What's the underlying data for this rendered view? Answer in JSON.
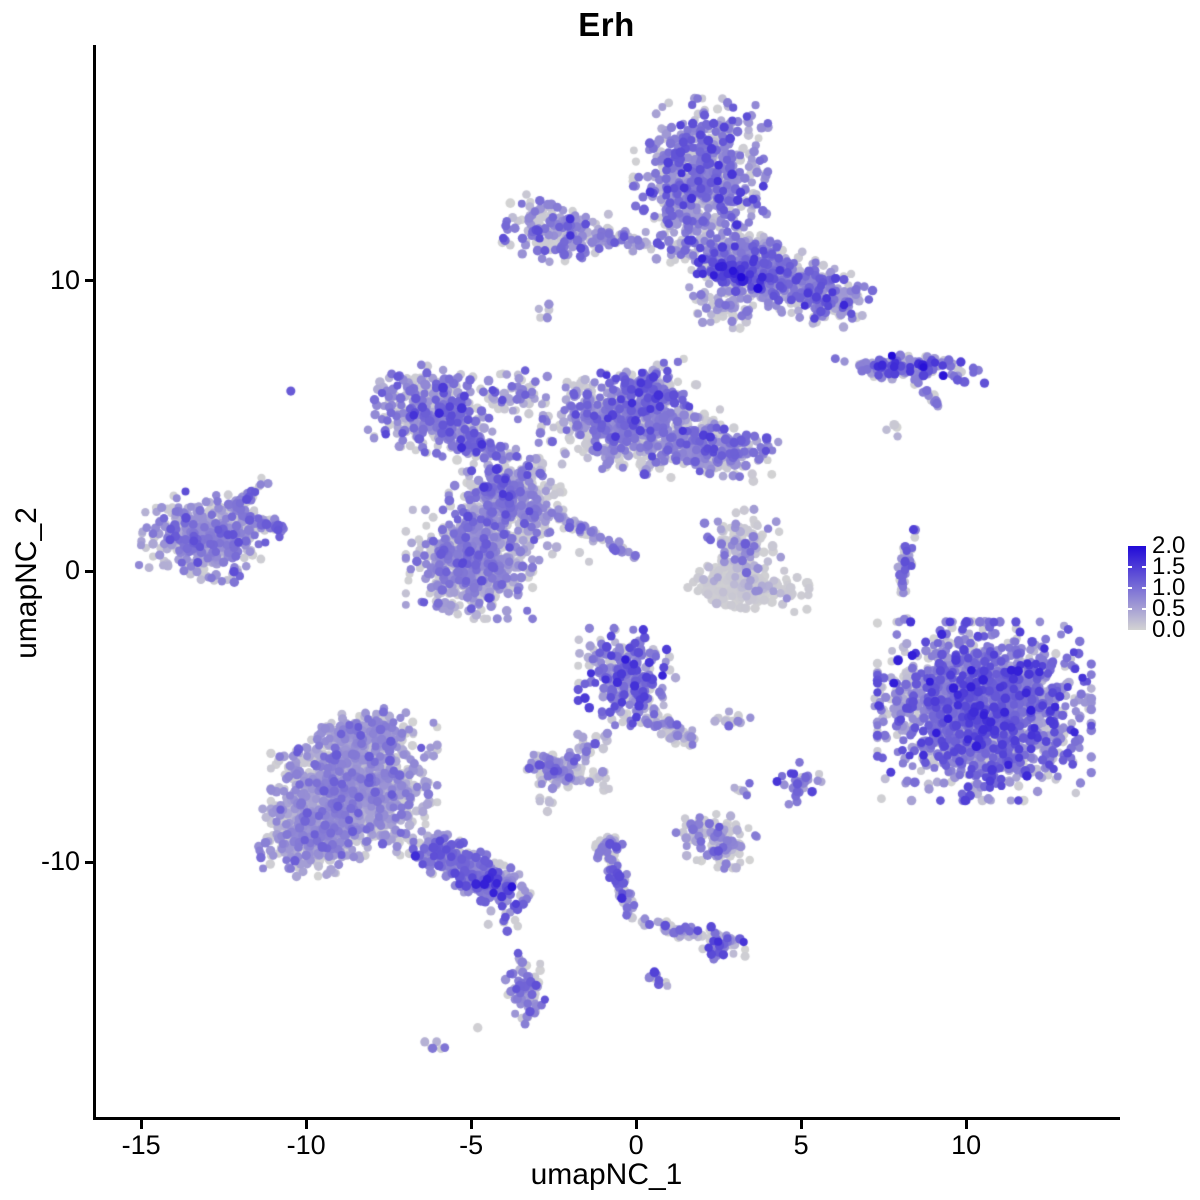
{
  "title": "Erh",
  "axes": {
    "x": {
      "label": "umapNC_1",
      "ticks": [
        "-15",
        "-10",
        "-5",
        "0",
        "5",
        "10"
      ],
      "tick_values": [
        -15,
        -10,
        -5,
        0,
        5,
        10
      ]
    },
    "y": {
      "label": "umapNC_2",
      "ticks": [
        "10",
        "0",
        "-10"
      ],
      "tick_values": [
        10,
        0,
        -10
      ]
    }
  },
  "legend": {
    "labels": [
      "2.0",
      "1.5",
      "1.0",
      "0.5",
      "0.0"
    ],
    "values": [
      2.0,
      1.5,
      1.0,
      0.5,
      0.0
    ],
    "color_low": "#d3d3d3",
    "color_high": "#210ad8",
    "notch_values": [
      1.5,
      1.0,
      0.5
    ]
  },
  "chart_data": {
    "type": "scatter",
    "title": "Erh",
    "xlabel": "umapNC_1",
    "ylabel": "umapNC_2",
    "xlim": [
      -16.4,
      14.6
    ],
    "ylim": [
      -18.8,
      18.1
    ],
    "grid": false,
    "legend_position": "right",
    "colorbar": {
      "min": 0.0,
      "max": 2.0,
      "tick_values": [
        2.0,
        1.5,
        1.0,
        0.5,
        0.0
      ],
      "low": "#d3d3d3",
      "high": "#210ad8"
    },
    "point_radius_px": 4.4,
    "clusters": [
      {
        "name": "top-core",
        "x": 1.95,
        "y": 13.5,
        "sx": 0.85,
        "sy": 1.15,
        "rot": 0,
        "n": 700,
        "expr_mean": 0.75,
        "expr_sd": 0.35,
        "grey_frac": 0.22
      },
      {
        "name": "top-arm",
        "x": 3.7,
        "y": 10.4,
        "sx": 1.05,
        "sy": 0.45,
        "rot": -24,
        "n": 550,
        "expr_mean": 0.7,
        "expr_sd": 0.35,
        "grey_frac": 0.28
      },
      {
        "name": "top-arm-tip",
        "x": 5.7,
        "y": 9.5,
        "sx": 0.55,
        "sy": 0.4,
        "rot": -20,
        "n": 180,
        "expr_mean": 0.75,
        "expr_sd": 0.4,
        "grey_frac": 0.25
      },
      {
        "name": "top-dark-fold",
        "x": 2.9,
        "y": 10.3,
        "sx": 0.45,
        "sy": 0.18,
        "rot": -20,
        "n": 90,
        "expr_mean": 1.25,
        "expr_sd": 0.35,
        "grey_frac": 0.05
      },
      {
        "name": "top-under-sparse",
        "x": 2.8,
        "y": 9.2,
        "sx": 0.5,
        "sy": 0.35,
        "rot": 0,
        "n": 80,
        "expr_mean": 0.6,
        "expr_sd": 0.3,
        "grey_frac": 0.4
      },
      {
        "name": "top-left-knot",
        "x": -2.4,
        "y": 11.7,
        "sx": 0.65,
        "sy": 0.45,
        "rot": -10,
        "n": 170,
        "expr_mean": 0.75,
        "expr_sd": 0.35,
        "grey_frac": 0.3
      },
      {
        "name": "top-left-bridge",
        "x": -0.45,
        "y": 11.4,
        "sx": 0.6,
        "sy": 0.15,
        "rot": -5,
        "n": 60,
        "expr_mean": 0.7,
        "expr_sd": 0.3,
        "grey_frac": 0.3
      },
      {
        "name": "tiny-below-knot",
        "x": -2.76,
        "y": 8.8,
        "sx": 0.16,
        "sy": 0.16,
        "rot": 0,
        "n": 7,
        "expr_mean": 0.5,
        "expr_sd": 0.3,
        "grey_frac": 0.4
      },
      {
        "name": "right-streak",
        "x": 8.3,
        "y": 7.0,
        "sx": 0.95,
        "sy": 0.17,
        "rot": -3,
        "n": 140,
        "expr_mean": 0.95,
        "expr_sd": 0.45,
        "grey_frac": 0.12
      },
      {
        "name": "right-streak-diag",
        "x": 8.9,
        "y": 6.0,
        "sx": 0.28,
        "sy": 0.08,
        "rot": -48,
        "n": 12,
        "expr_mean": 0.8,
        "expr_sd": 0.3,
        "grey_frac": 0.2
      },
      {
        "name": "right-streak-dots",
        "x": 7.76,
        "y": 4.8,
        "sx": 0.13,
        "sy": 0.13,
        "rot": 0,
        "n": 4,
        "expr_mean": 0.3,
        "expr_sd": 0.3,
        "grey_frac": 0.5
      },
      {
        "name": "mid-left-lobe",
        "x": -6.1,
        "y": 5.5,
        "sx": 0.78,
        "sy": 0.6,
        "rot": -15,
        "n": 430,
        "expr_mean": 0.75,
        "expr_sd": 0.35,
        "grey_frac": 0.28
      },
      {
        "name": "mid-ridge",
        "x": -4.8,
        "y": 4.4,
        "sx": 0.7,
        "sy": 0.2,
        "rot": -28,
        "n": 120,
        "expr_mean": 0.85,
        "expr_sd": 0.35,
        "grey_frac": 0.15
      },
      {
        "name": "mid-hub",
        "x": -4.0,
        "y": 2.6,
        "sx": 0.7,
        "sy": 0.55,
        "rot": 0,
        "n": 320,
        "expr_mean": 0.7,
        "expr_sd": 0.35,
        "grey_frac": 0.33
      },
      {
        "name": "mid-lower-blob",
        "x": -5.06,
        "y": 0.24,
        "sx": 0.8,
        "sy": 0.78,
        "rot": 0,
        "n": 620,
        "expr_mean": 0.65,
        "expr_sd": 0.3,
        "grey_frac": 0.35
      },
      {
        "name": "mid-right-wing",
        "x": -0.2,
        "y": 5.05,
        "sx": 1.1,
        "sy": 0.68,
        "rot": -8,
        "n": 650,
        "expr_mean": 0.7,
        "expr_sd": 0.35,
        "grey_frac": 0.33
      },
      {
        "name": "mid-wing-peak",
        "x": 0.24,
        "y": 6.25,
        "sx": 0.5,
        "sy": 0.45,
        "rot": 0,
        "n": 150,
        "expr_mean": 0.8,
        "expr_sd": 0.35,
        "grey_frac": 0.25
      },
      {
        "name": "mid-far-wing",
        "x": 2.2,
        "y": 4.26,
        "sx": 0.85,
        "sy": 0.4,
        "rot": -10,
        "n": 280,
        "expr_mean": 0.7,
        "expr_sd": 0.35,
        "grey_frac": 0.33
      },
      {
        "name": "mid-diag-streak",
        "x": -1.7,
        "y": 1.48,
        "sx": 0.8,
        "sy": 0.1,
        "rot": -29,
        "n": 70,
        "expr_mean": 0.75,
        "expr_sd": 0.3,
        "grey_frac": 0.3
      },
      {
        "name": "mid-scatter-fill",
        "x": -3.5,
        "y": 1.8,
        "sx": 0.9,
        "sy": 0.7,
        "rot": 0,
        "n": 130,
        "expr_mean": 0.5,
        "expr_sd": 0.3,
        "grey_frac": 0.45
      },
      {
        "name": "mid-neck-up",
        "x": -3.5,
        "y": 6.1,
        "sx": 0.4,
        "sy": 0.5,
        "rot": 0,
        "n": 45,
        "expr_mean": 0.6,
        "expr_sd": 0.3,
        "grey_frac": 0.4
      },
      {
        "name": "left-cluster",
        "x": -13.1,
        "y": 1.2,
        "sx": 0.78,
        "sy": 0.62,
        "rot": -5,
        "n": 520,
        "expr_mean": 0.6,
        "expr_sd": 0.3,
        "grey_frac": 0.3
      },
      {
        "name": "left-spur-up",
        "x": -11.9,
        "y": 2.47,
        "sx": 0.38,
        "sy": 0.12,
        "rot": 45,
        "n": 45,
        "expr_mean": 0.7,
        "expr_sd": 0.3,
        "grey_frac": 0.3
      },
      {
        "name": "left-spur-right",
        "x": -11.06,
        "y": 1.58,
        "sx": 0.42,
        "sy": 0.12,
        "rot": -22,
        "n": 40,
        "expr_mean": 0.7,
        "expr_sd": 0.3,
        "grey_frac": 0.3
      },
      {
        "name": "lone-dot",
        "x": -10.5,
        "y": 6.2,
        "sx": 0.03,
        "sy": 0.03,
        "rot": 0,
        "n": 1,
        "expr_mean": 1.2,
        "expr_sd": 0,
        "grey_frac": 0
      },
      {
        "name": "center-cluster",
        "x": -0.27,
        "y": -3.64,
        "sx": 0.62,
        "sy": 0.7,
        "rot": 0,
        "n": 310,
        "expr_mean": 0.85,
        "expr_sd": 0.4,
        "grey_frac": 0.22
      },
      {
        "name": "center-arm",
        "x": 1.06,
        "y": -5.43,
        "sx": 0.5,
        "sy": 0.16,
        "rot": -35,
        "n": 60,
        "expr_mean": 0.6,
        "expr_sd": 0.3,
        "grey_frac": 0.35
      },
      {
        "name": "center-trail",
        "x": -1.42,
        "y": -6.12,
        "sx": 0.3,
        "sy": 0.3,
        "rot": 0,
        "n": 18,
        "expr_mean": 0.5,
        "expr_sd": 0.3,
        "grey_frac": 0.45
      },
      {
        "name": "center-small-blob",
        "x": -2.4,
        "y": -6.87,
        "sx": 0.45,
        "sy": 0.3,
        "rot": -10,
        "n": 110,
        "expr_mean": 0.6,
        "expr_sd": 0.3,
        "grey_frac": 0.38
      },
      {
        "name": "center-tiny-below",
        "x": -2.7,
        "y": -7.9,
        "sx": 0.2,
        "sy": 0.15,
        "rot": 0,
        "n": 6,
        "expr_mean": 0.3,
        "expr_sd": 0.2,
        "grey_frac": 0.6
      },
      {
        "name": "center-dot-pair",
        "x": -1.06,
        "y": -7.15,
        "sx": 0.22,
        "sy": 0.18,
        "rot": 0,
        "n": 10,
        "expr_mean": 0.5,
        "expr_sd": 0.3,
        "grey_frac": 0.5
      },
      {
        "name": "dots-mid-right",
        "x": 2.8,
        "y": -5.08,
        "sx": 0.32,
        "sy": 0.14,
        "rot": 0,
        "n": 14,
        "expr_mean": 0.5,
        "expr_sd": 0.3,
        "grey_frac": 0.5
      },
      {
        "name": "small-purple-blob",
        "x": 4.94,
        "y": -7.29,
        "sx": 0.28,
        "sy": 0.3,
        "rot": 0,
        "n": 32,
        "expr_mean": 0.9,
        "expr_sd": 0.35,
        "grey_frac": 0.18
      },
      {
        "name": "tiny-blob",
        "x": 3.36,
        "y": -7.6,
        "sx": 0.16,
        "sy": 0.13,
        "rot": 0,
        "n": 8,
        "expr_mean": 0.7,
        "expr_sd": 0.3,
        "grey_frac": 0.35
      },
      {
        "name": "bottomleft-main",
        "x": -8.55,
        "y": -7.49,
        "sx": 1.05,
        "sy": 0.95,
        "rot": 0,
        "n": 1200,
        "expr_mean": 0.55,
        "expr_sd": 0.27,
        "grey_frac": 0.38
      },
      {
        "name": "bottomleft-top",
        "x": -8.15,
        "y": -5.6,
        "sx": 0.58,
        "sy": 0.4,
        "rot": 0,
        "n": 220,
        "expr_mean": 0.55,
        "expr_sd": 0.27,
        "grey_frac": 0.38
      },
      {
        "name": "bottomleft-left",
        "x": -9.76,
        "y": -9.04,
        "sx": 0.72,
        "sy": 0.6,
        "rot": 10,
        "n": 420,
        "expr_mean": 0.55,
        "expr_sd": 0.25,
        "grey_frac": 0.4
      },
      {
        "name": "bottomleft-tail",
        "x": -5.3,
        "y": -10.14,
        "sx": 0.95,
        "sy": 0.3,
        "rot": -31,
        "n": 300,
        "expr_mean": 0.8,
        "expr_sd": 0.4,
        "grey_frac": 0.2
      },
      {
        "name": "tail-tip",
        "x": -4.3,
        "y": -10.76,
        "sx": 0.38,
        "sy": 0.3,
        "rot": -31,
        "n": 90,
        "expr_mean": 0.95,
        "expr_sd": 0.4,
        "grey_frac": 0.15
      },
      {
        "name": "below-tail-sparse",
        "x": -4.0,
        "y": -11.8,
        "sx": 0.28,
        "sy": 0.5,
        "rot": 0,
        "n": 14,
        "expr_mean": 0.6,
        "expr_sd": 0.35,
        "grey_frac": 0.4
      },
      {
        "name": "y-trail-main",
        "x": -0.52,
        "y": -10.62,
        "sx": 0.6,
        "sy": 0.12,
        "rot": -70,
        "n": 60,
        "expr_mean": 0.8,
        "expr_sd": 0.35,
        "grey_frac": 0.3
      },
      {
        "name": "y-trail-knob",
        "x": -0.91,
        "y": -9.42,
        "sx": 0.22,
        "sy": 0.18,
        "rot": 0,
        "n": 25,
        "expr_mean": 0.8,
        "expr_sd": 0.35,
        "grey_frac": 0.3
      },
      {
        "name": "y-trail-branch",
        "x": 1.09,
        "y": -12.27,
        "sx": 0.68,
        "sy": 0.1,
        "rot": -17,
        "n": 45,
        "expr_mean": 0.7,
        "expr_sd": 0.35,
        "grey_frac": 0.35
      },
      {
        "name": "branch-end-blob",
        "x": 2.58,
        "y": -12.85,
        "sx": 0.3,
        "sy": 0.26,
        "rot": 0,
        "n": 50,
        "expr_mean": 0.9,
        "expr_sd": 0.4,
        "grey_frac": 0.25
      },
      {
        "name": "grey-mix-cluster",
        "x": 2.39,
        "y": -9.21,
        "sx": 0.5,
        "sy": 0.38,
        "rot": -15,
        "n": 130,
        "expr_mean": 0.6,
        "expr_sd": 0.3,
        "grey_frac": 0.45
      },
      {
        "name": "bottom-dot-blob",
        "x": 0.55,
        "y": -14.02,
        "sx": 0.2,
        "sy": 0.09,
        "rot": -40,
        "n": 10,
        "expr_mean": 1.0,
        "expr_sd": 0.3,
        "grey_frac": 0.1
      },
      {
        "name": "bottom-blob",
        "x": -3.33,
        "y": -14.43,
        "sx": 0.24,
        "sy": 0.55,
        "rot": 10,
        "n": 70,
        "expr_mean": 0.75,
        "expr_sd": 0.35,
        "grey_frac": 0.28
      },
      {
        "name": "bottom-grey-dot",
        "x": -4.76,
        "y": -15.77,
        "sx": 0.03,
        "sy": 0.03,
        "rot": 0,
        "n": 1,
        "expr_mean": 0.05,
        "expr_sd": 0,
        "grey_frac": 1
      },
      {
        "name": "bottom-tiny-diag",
        "x": -6.03,
        "y": -16.36,
        "sx": 0.22,
        "sy": 0.08,
        "rot": -30,
        "n": 7,
        "expr_mean": 0.7,
        "expr_sd": 0.3,
        "grey_frac": 0.2
      },
      {
        "name": "right-round",
        "x": 10.55,
        "y": -4.81,
        "sx": 1.35,
        "sy": 1.28,
        "rot": 0,
        "n": 1700,
        "expr_mean": 0.85,
        "expr_sd": 0.4,
        "grey_frac": 0.15
      },
      {
        "name": "right-round-fringe",
        "x": 8.42,
        "y": -4.05,
        "sx": 0.5,
        "sy": 0.6,
        "rot": 0,
        "n": 60,
        "expr_mean": 0.35,
        "expr_sd": 0.3,
        "grey_frac": 0.55
      },
      {
        "name": "right-arc",
        "x": 8.15,
        "y": 0.14,
        "sx": 0.55,
        "sy": 0.09,
        "rot": 80,
        "n": 45,
        "expr_mean": 0.7,
        "expr_sd": 0.35,
        "grey_frac": 0.3
      },
      {
        "name": "right-arc-dots",
        "x": 8.1,
        "y": -1.7,
        "sx": 0.08,
        "sy": 0.08,
        "rot": 0,
        "n": 2,
        "expr_mean": 0.6,
        "expr_sd": 0.2,
        "grey_frac": 0.3
      },
      {
        "name": "grey-cluster-top",
        "x": 3.18,
        "y": 0.93,
        "sx": 0.5,
        "sy": 0.5,
        "rot": 0,
        "n": 110,
        "expr_mean": 0.45,
        "expr_sd": 0.3,
        "grey_frac": 0.5
      },
      {
        "name": "grey-crescent",
        "x": 3.36,
        "y": -0.55,
        "sx": 0.78,
        "sy": 0.3,
        "rot": -5,
        "n": 230,
        "expr_mean": 0.12,
        "expr_sd": 0.25,
        "grey_frac": 0.75
      }
    ]
  }
}
